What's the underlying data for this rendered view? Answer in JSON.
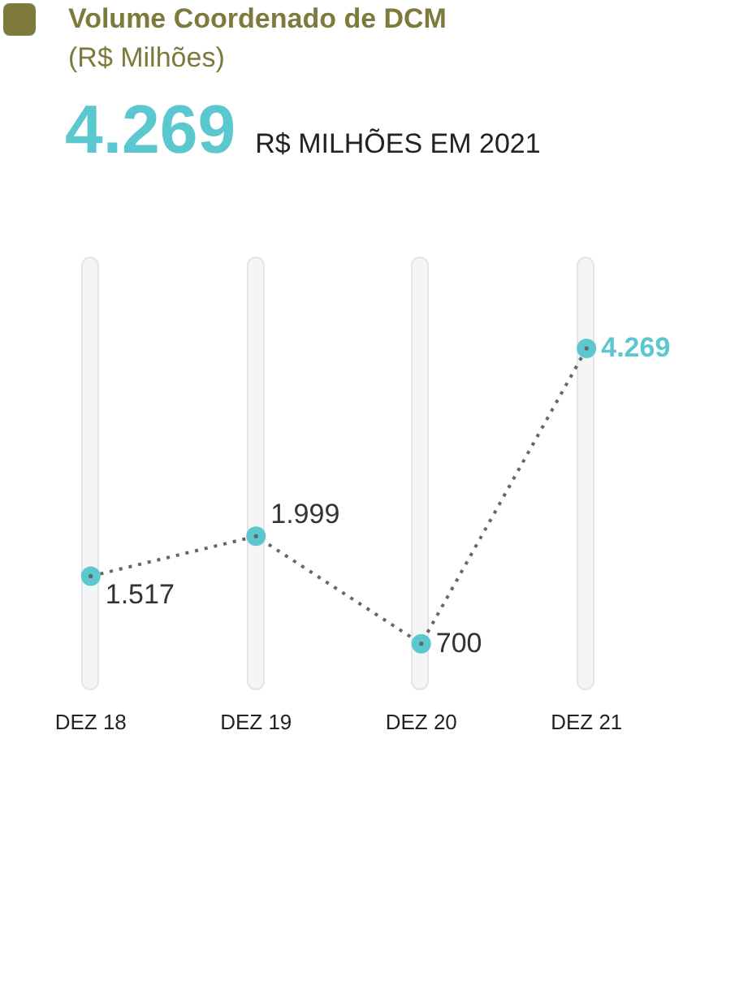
{
  "chart_data": {
    "type": "line",
    "title": "Volume Coordenado de DCM",
    "subtitle": "(R$ Milhões)",
    "annotations": [
      "4.269",
      "R$ MILHÕES EM 2021"
    ],
    "categories": [
      "DEZ 18",
      "DEZ 19",
      "DEZ 20",
      "DEZ 21"
    ],
    "series": [
      {
        "color": "#5bc8cf",
        "values": [
          1517,
          1999,
          700,
          4269
        ],
        "value_labels": [
          "1.517",
          "1.999",
          "700",
          "4.269"
        ]
      }
    ],
    "marker": "circle",
    "line_style": "dotted"
  }
}
